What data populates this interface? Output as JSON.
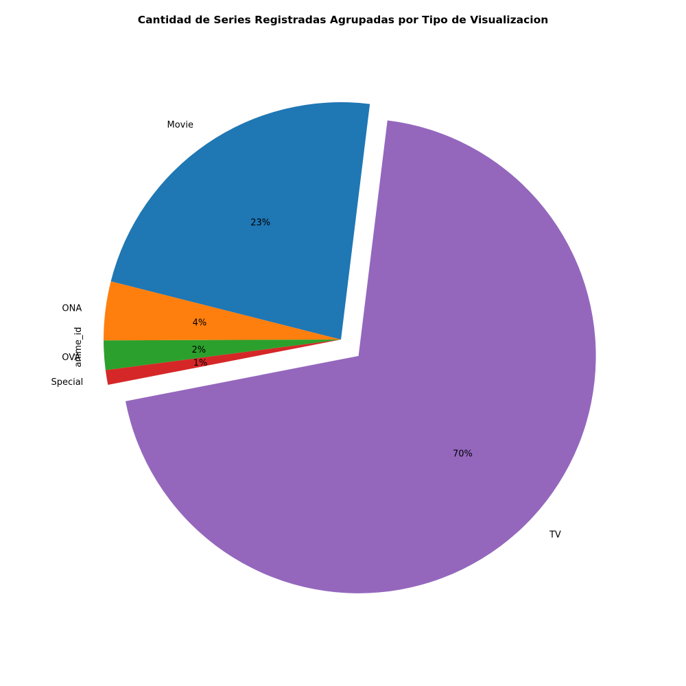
{
  "chart_data": {
    "type": "pie",
    "title": "Cantidad de Series Registradas Agrupadas por Tipo de Visualizacion",
    "ylabel": "anime_id",
    "slices": [
      {
        "label": "Movie",
        "value": 23,
        "pct_label": "23%",
        "color": "#1f77b4",
        "exploded": false
      },
      {
        "label": "ONA",
        "value": 4,
        "pct_label": "4%",
        "color": "#ff7f0e",
        "exploded": false
      },
      {
        "label": "OVA",
        "value": 2,
        "pct_label": "2%",
        "color": "#2ca02c",
        "exploded": false
      },
      {
        "label": "Special",
        "value": 1,
        "pct_label": "1%",
        "color": "#d62728",
        "exploded": false
      },
      {
        "label": "TV",
        "value": 70,
        "pct_label": "70%",
        "color": "#9467bd",
        "exploded": true
      }
    ]
  }
}
